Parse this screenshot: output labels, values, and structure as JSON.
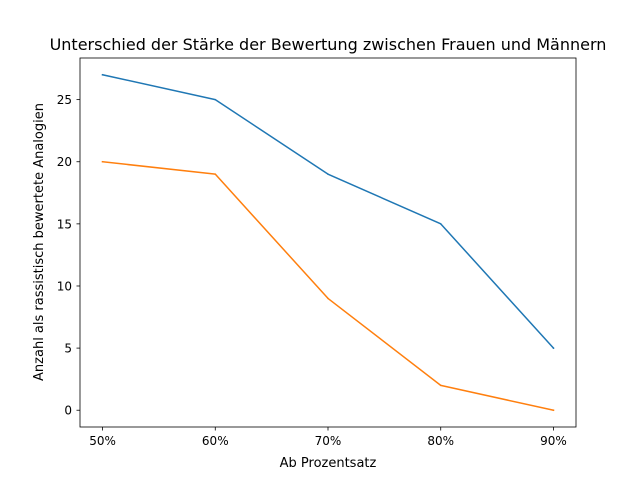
{
  "chart_data": {
    "type": "line",
    "title": "Unterschied der Stärke der Bewertung zwischen Frauen und Männern",
    "xlabel": "Ab Prozentsatz",
    "ylabel": "Anzahl als rassistisch bewertete Analogien",
    "categories": [
      "50%",
      "60%",
      "70%",
      "80%",
      "90%"
    ],
    "yticks": [
      0,
      5,
      10,
      15,
      20,
      25
    ],
    "ylim": [
      -1.35,
      28.35
    ],
    "grid": false,
    "legend": "none",
    "series": [
      {
        "color": "#1f77b4",
        "values": [
          27,
          25,
          19,
          15,
          5
        ]
      },
      {
        "color": "#ff7f0e",
        "values": [
          20,
          19,
          9,
          2,
          0
        ]
      }
    ]
  }
}
